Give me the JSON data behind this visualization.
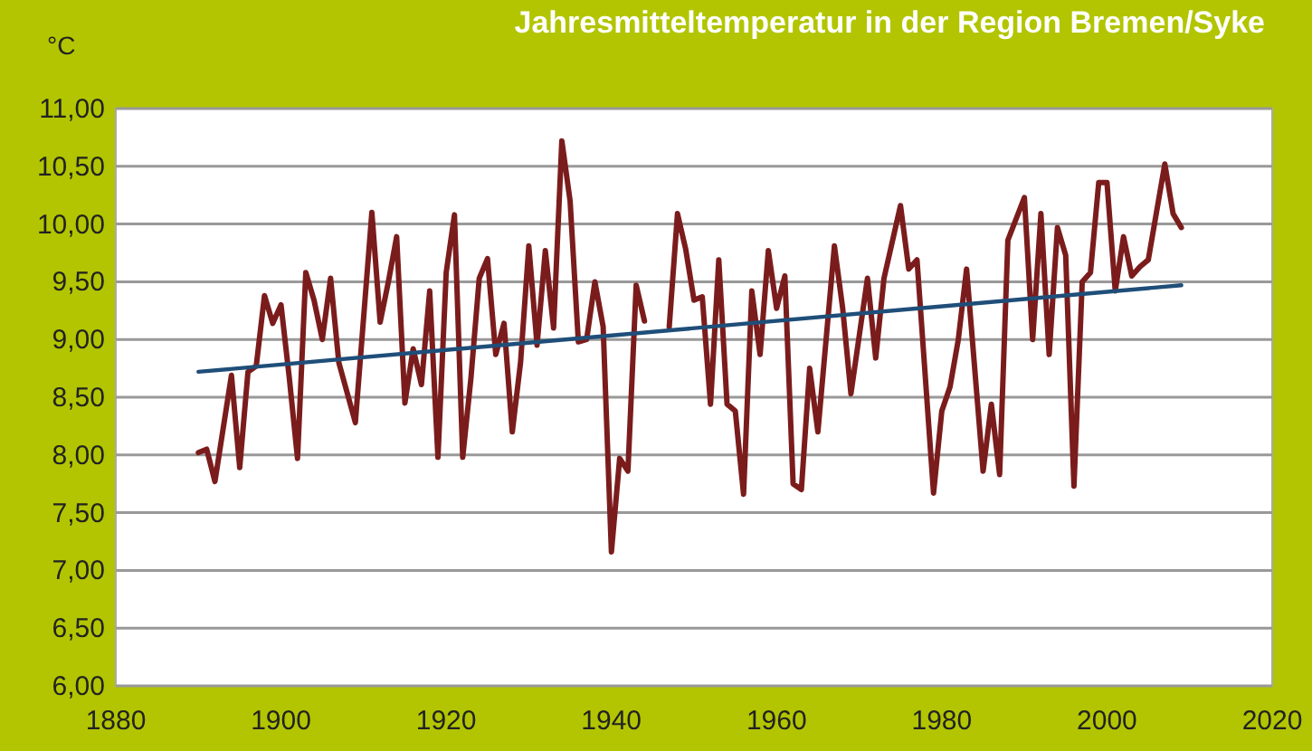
{
  "chart_data": {
    "type": "line",
    "title": "Jahresmitteltemperatur in der Region Bremen/Syke",
    "ylabel": "°C",
    "xlim": [
      1880,
      2020
    ],
    "xticks": [
      1880,
      1900,
      1920,
      1940,
      1960,
      1980,
      2000,
      2020
    ],
    "ylim": [
      6,
      11
    ],
    "yticks": [
      {
        "value": 6,
        "label": "6,00"
      },
      {
        "value": 6.5,
        "label": "6,50"
      },
      {
        "value": 7,
        "label": "7,00"
      },
      {
        "value": 7.5,
        "label": "7,50"
      },
      {
        "value": 8,
        "label": "8,00"
      },
      {
        "value": 8.5,
        "label": "8,50"
      },
      {
        "value": 9,
        "label": "9,00"
      },
      {
        "value": 9.5,
        "label": "9,50"
      },
      {
        "value": 10,
        "label": "10,00"
      },
      {
        "value": 10.5,
        "label": "10,50"
      },
      {
        "value": 11,
        "label": "11,00"
      }
    ],
    "grid": "y",
    "marker": "none",
    "line_style": "solid",
    "series": [
      {
        "color": "#7b1c1c",
        "x": [
          1890,
          1891,
          1892,
          1894,
          1895,
          1896,
          1897,
          1898,
          1899,
          1900,
          1901,
          1902,
          1903,
          1904,
          1905,
          1906,
          1907,
          1909,
          1910,
          1911,
          1912,
          1913,
          1914,
          1915,
          1916,
          1917,
          1918,
          1919,
          1920,
          1921,
          1922,
          1923,
          1924,
          1925,
          1926,
          1927,
          1928,
          1929,
          1930,
          1931,
          1932,
          1933,
          1934,
          1935,
          1936,
          1937,
          1938,
          1939,
          1940,
          1941,
          1942,
          1943,
          1944,
          1945,
          1946,
          1947,
          1948,
          1949,
          1950,
          1951,
          1952,
          1953,
          1954,
          1955,
          1956,
          1957,
          1958,
          1959,
          1960,
          1961,
          1962,
          1963,
          1964,
          1965,
          1967,
          1968,
          1969,
          1971,
          1972,
          1973,
          1975,
          1976,
          1977,
          1979,
          1980,
          1981,
          1982,
          1983,
          1985,
          1986,
          1987,
          1988,
          1990,
          1991,
          1992,
          1993,
          1994,
          1995,
          1996,
          1997,
          1998,
          1999,
          2000,
          2001,
          2002,
          2003,
          2004,
          2005,
          2007,
          2008,
          2009
        ],
        "values": [
          8.02,
          8.05,
          7.77,
          8.69,
          7.89,
          8.72,
          8.77,
          9.38,
          9.14,
          9.3,
          8.67,
          7.97,
          9.58,
          9.34,
          9.0,
          9.53,
          8.8,
          8.28,
          9.19,
          10.1,
          9.15,
          9.5,
          9.89,
          8.45,
          8.92,
          8.61,
          9.42,
          7.98,
          9.58,
          10.08,
          7.98,
          8.67,
          9.53,
          9.7,
          8.87,
          9.14,
          8.2,
          8.8,
          9.81,
          8.95,
          9.77,
          9.1,
          10.72,
          10.2,
          8.98,
          9.0,
          9.5,
          9.11,
          7.16,
          7.97,
          7.86,
          9.47,
          9.16,
          null,
          null,
          9.11,
          10.09,
          9.78,
          9.34,
          9.37,
          8.44,
          9.69,
          8.44,
          8.38,
          7.66,
          9.42,
          8.87,
          9.77,
          9.27,
          9.55,
          7.75,
          7.7,
          8.75,
          8.2,
          9.81,
          9.27,
          8.53,
          9.53,
          8.84,
          9.53,
          10.16,
          9.61,
          9.69,
          7.67,
          8.38,
          8.59,
          9.0,
          9.61,
          7.86,
          8.44,
          7.83,
          9.86,
          10.23,
          9.0,
          10.09,
          8.87,
          9.97,
          9.73,
          7.73,
          9.5,
          9.58,
          10.36,
          10.36,
          9.42,
          9.89,
          9.55,
          9.63,
          9.69,
          10.52,
          10.09,
          9.97
        ]
      },
      {
        "color": "#1f4e79",
        "x": [
          1890,
          2009
        ],
        "values": [
          8.72,
          9.47
        ]
      }
    ]
  }
}
